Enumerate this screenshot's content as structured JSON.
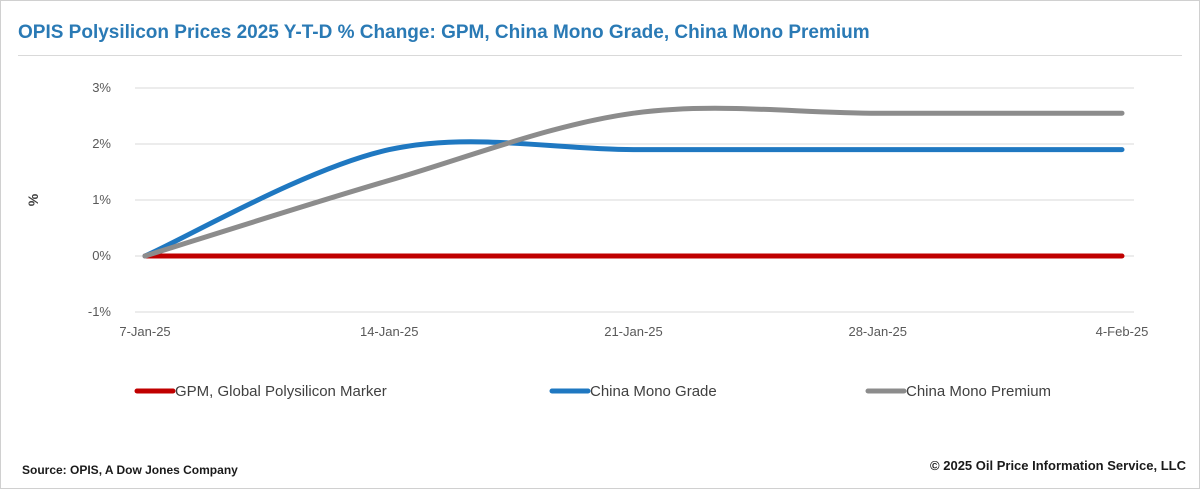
{
  "title": "OPIS Polysilicon Prices 2025 Y-T-D % Change: GPM, China Mono Grade, China Mono Premium",
  "source": "Source: OPIS, A Dow Jones Company",
  "copyright": "© 2025 Oil Price Information Service, LLC",
  "chart_data": {
    "type": "line",
    "title": "OPIS Polysilicon Prices 2025 Y-T-D % Change: GPM, China Mono Grade, China Mono Premium",
    "xlabel": "",
    "ylabel": "%",
    "ylim": [
      -1,
      3
    ],
    "y_ticks": [
      -1,
      0,
      1,
      2,
      3
    ],
    "y_tick_labels": [
      "-1%",
      "0%",
      "1%",
      "2%",
      "3%"
    ],
    "x_ticks": [
      "2025-01-07",
      "2025-01-14",
      "2025-01-21",
      "2025-01-28",
      "2025-02-04"
    ],
    "x_tick_labels": [
      "7-Jan-25",
      "14-Jan-25",
      "21-Jan-25",
      "28-Jan-25",
      "4-Feb-25"
    ],
    "grid": "horizontal",
    "legend_position": "bottom",
    "x": [
      "2025-01-07",
      "2025-01-14",
      "2025-01-21",
      "2025-01-28",
      "2025-02-04"
    ],
    "series": [
      {
        "name": "GPM, Global Polysilicon Marker",
        "color": "#c00000",
        "values": [
          0,
          0,
          0,
          0,
          0
        ]
      },
      {
        "name": "China Mono Grade",
        "color": "#1f78c1",
        "values": [
          0,
          1.9,
          1.9,
          1.9,
          1.9
        ]
      },
      {
        "name": "China Mono Premium",
        "color": "#8c8c8c",
        "values": [
          0,
          1.35,
          2.55,
          2.55,
          2.55
        ]
      }
    ]
  }
}
